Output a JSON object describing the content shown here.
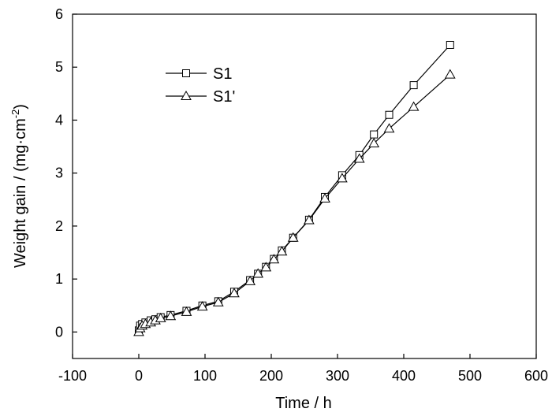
{
  "chart_data": {
    "type": "line",
    "xlabel": "Time / h",
    "ylabel": "Weight gain / (mg·cm",
    "ylabel_superscript": "-2",
    "ylabel_suffix": ")",
    "xlim": [
      -100,
      600
    ],
    "ylim": [
      -0.5,
      6
    ],
    "xticks": [
      -100,
      0,
      100,
      200,
      300,
      400,
      500,
      600
    ],
    "yticks": [
      0,
      1,
      2,
      3,
      4,
      5,
      6
    ],
    "grid": false,
    "legend_position": "top-left",
    "series": [
      {
        "name": "S1",
        "marker": "square",
        "x": [
          0,
          2,
          5,
          10,
          18,
          25,
          33,
          48,
          72,
          96,
          120,
          144,
          168,
          180,
          192,
          204,
          216,
          233,
          257,
          281,
          307,
          333,
          355,
          378,
          415,
          470
        ],
        "y": [
          0.03,
          0.12,
          0.15,
          0.18,
          0.22,
          0.24,
          0.28,
          0.32,
          0.4,
          0.5,
          0.58,
          0.76,
          0.98,
          1.1,
          1.23,
          1.38,
          1.54,
          1.78,
          2.12,
          2.55,
          2.96,
          3.34,
          3.73,
          4.1,
          4.66,
          5.42
        ]
      },
      {
        "name": "S1'",
        "marker": "triangle",
        "x": [
          0,
          2,
          5,
          10,
          18,
          25,
          33,
          48,
          72,
          96,
          120,
          144,
          168,
          180,
          192,
          204,
          216,
          233,
          257,
          281,
          307,
          333,
          355,
          378,
          415,
          470
        ],
        "y": [
          0.0,
          0.07,
          0.12,
          0.15,
          0.18,
          0.22,
          0.26,
          0.3,
          0.38,
          0.48,
          0.56,
          0.73,
          0.96,
          1.1,
          1.22,
          1.37,
          1.52,
          1.78,
          2.11,
          2.52,
          2.9,
          3.27,
          3.56,
          3.84,
          4.25,
          4.86
        ]
      }
    ]
  }
}
